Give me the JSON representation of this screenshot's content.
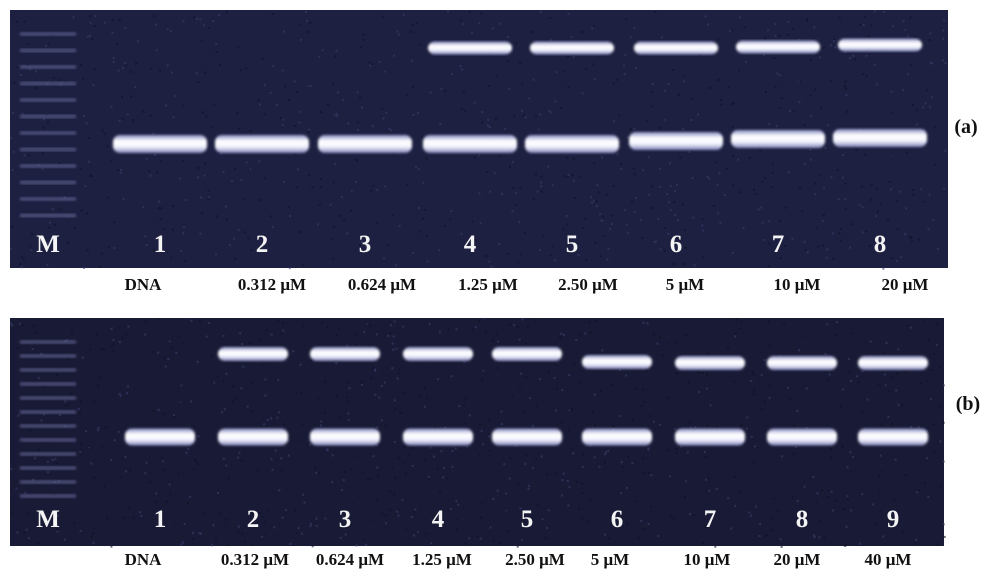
{
  "panels": [
    {
      "label": "(a)",
      "lanes": [
        "M",
        "1",
        "2",
        "3",
        "4",
        "5",
        "6",
        "7",
        "8"
      ],
      "concentrations": [
        "DNA",
        "0.312 μM",
        "0.624 μM",
        "1.25 μM",
        "2.50 μM",
        "5 μM",
        "10 μM",
        "20 μM"
      ]
    },
    {
      "label": "(b)",
      "lanes": [
        "M",
        "1",
        "2",
        "3",
        "4",
        "5",
        "6",
        "7",
        "8",
        "9"
      ],
      "concentrations": [
        "DNA",
        "0.312 μM",
        "0.624 μM",
        "1.25 μM",
        "2.50 μM",
        "5 μM",
        "10 μM",
        "20 μM",
        "40 μM"
      ]
    }
  ]
}
